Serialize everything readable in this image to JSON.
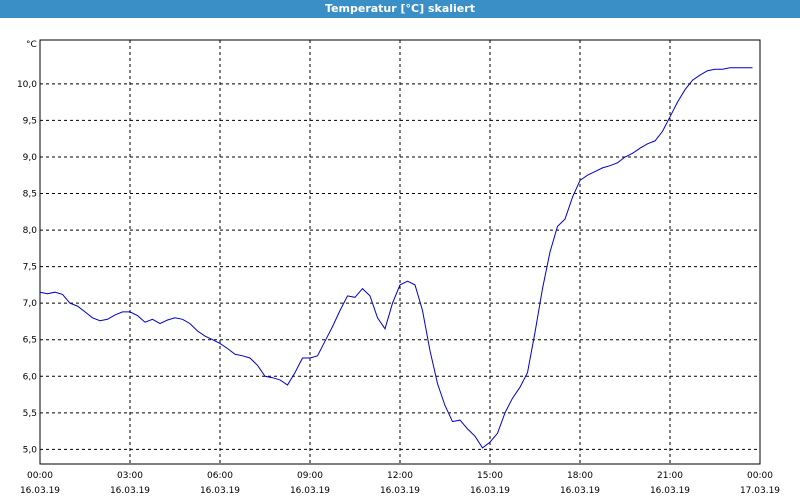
{
  "window": {
    "title": "Temperatur [°C] skaliert"
  },
  "colors": {
    "titlebar": "#3a8fc7",
    "line": "#0000cc",
    "grid": "#000000"
  },
  "chart_data": {
    "type": "line",
    "title": "Temperatur [°C] skaliert",
    "ylabel": "°C",
    "xlabel": "",
    "grid": true,
    "ylim": [
      4.8,
      10.6
    ],
    "xlim": [
      "16.03.19 00:00",
      "17.03.19 00:00"
    ],
    "y_ticks": [
      "5,0",
      "5,5",
      "6,0",
      "6,5",
      "7,0",
      "7,5",
      "8,0",
      "8,5",
      "9,0",
      "9,5",
      "10,0"
    ],
    "x_ticks": [
      {
        "time": "00:00",
        "date": "16.03.19"
      },
      {
        "time": "03:00",
        "date": "16.03.19"
      },
      {
        "time": "06:00",
        "date": "16.03.19"
      },
      {
        "time": "09:00",
        "date": "16.03.19"
      },
      {
        "time": "12:00",
        "date": "16.03.19"
      },
      {
        "time": "15:00",
        "date": "16.03.19"
      },
      {
        "time": "18:00",
        "date": "16.03.19"
      },
      {
        "time": "21:00",
        "date": "16.03.19"
      },
      {
        "time": "00:00",
        "date": "17.03.19"
      }
    ],
    "series": [
      {
        "x": [
          "00:00",
          "00:15",
          "00:30",
          "00:45",
          "01:00",
          "01:15",
          "01:30",
          "01:45",
          "02:00",
          "02:15",
          "02:30",
          "02:45",
          "03:00",
          "03:15",
          "03:30",
          "03:45",
          "04:00",
          "04:15",
          "04:30",
          "04:45",
          "05:00",
          "05:15",
          "05:30",
          "05:45",
          "06:00",
          "06:15",
          "06:30",
          "06:45",
          "07:00",
          "07:15",
          "07:30",
          "07:45",
          "08:00",
          "08:15",
          "08:30",
          "08:45",
          "09:00",
          "09:15",
          "09:30",
          "09:45",
          "10:00",
          "10:15",
          "10:30",
          "10:45",
          "11:00",
          "11:15",
          "11:30",
          "11:45",
          "12:00",
          "12:15",
          "12:30",
          "12:45",
          "13:00",
          "13:15",
          "13:30",
          "13:45",
          "14:00",
          "14:15",
          "14:30",
          "14:45",
          "15:00",
          "15:15",
          "15:30",
          "15:45",
          "16:00",
          "16:15",
          "16:30",
          "16:45",
          "17:00",
          "17:15",
          "17:30",
          "17:45",
          "18:00",
          "18:15",
          "18:30",
          "18:45",
          "19:00",
          "19:15",
          "19:30",
          "19:45",
          "20:00",
          "20:15",
          "20:30",
          "20:45",
          "21:00",
          "21:15",
          "21:30",
          "21:45",
          "22:00",
          "22:15",
          "22:30",
          "22:45",
          "23:00",
          "23:15",
          "23:30",
          "23:45"
        ],
        "values": [
          7.15,
          7.13,
          7.15,
          7.12,
          7.0,
          6.96,
          6.88,
          6.8,
          6.76,
          6.78,
          6.84,
          6.88,
          6.88,
          6.83,
          6.74,
          6.78,
          6.72,
          6.77,
          6.8,
          6.78,
          6.72,
          6.62,
          6.55,
          6.5,
          6.45,
          6.38,
          6.3,
          6.28,
          6.25,
          6.15,
          6.0,
          5.98,
          5.95,
          5.88,
          6.05,
          6.25,
          6.25,
          6.28,
          6.48,
          6.68,
          6.9,
          7.1,
          7.08,
          7.2,
          7.1,
          6.8,
          6.65,
          7.0,
          7.25,
          7.3,
          7.25,
          6.9,
          6.35,
          5.9,
          5.6,
          5.38,
          5.4,
          5.28,
          5.18,
          5.02,
          5.1,
          5.22,
          5.5,
          5.7,
          5.85,
          6.05,
          6.6,
          7.2,
          7.7,
          8.05,
          8.15,
          8.45,
          8.68,
          8.75,
          8.8,
          8.85,
          8.88,
          8.92,
          9.0,
          9.05,
          9.12,
          9.18,
          9.22,
          9.35,
          9.55,
          9.75,
          9.92,
          10.05,
          10.12,
          10.18,
          10.2,
          10.2,
          10.22,
          10.22,
          10.22,
          10.22
        ]
      }
    ]
  }
}
